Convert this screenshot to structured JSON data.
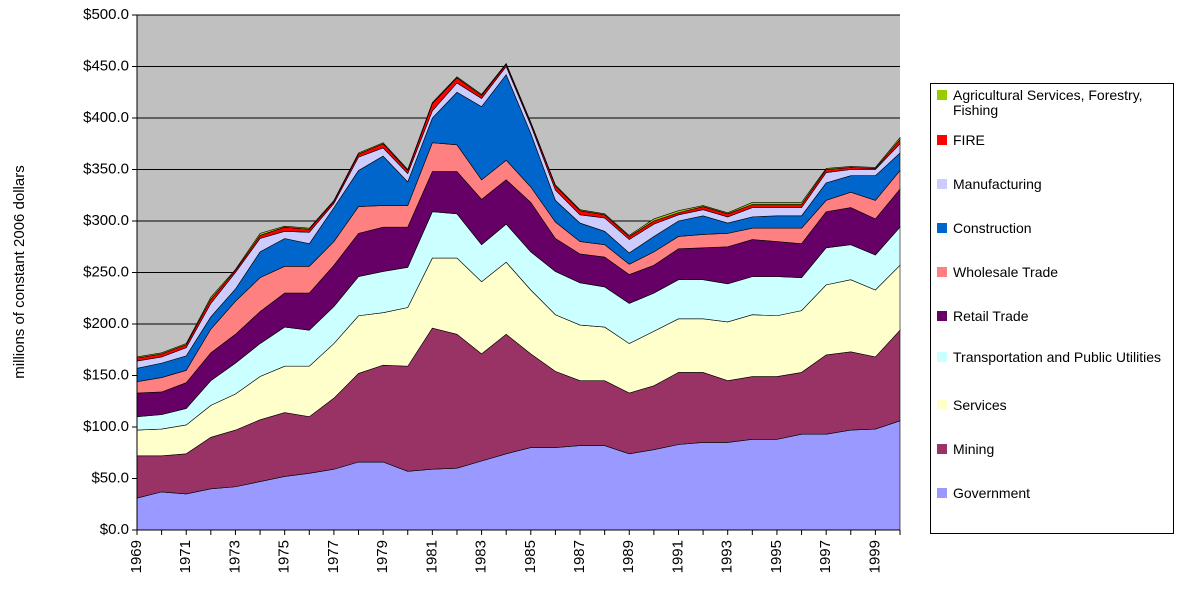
{
  "chart_data": {
    "type": "stacked_area",
    "y_label": "millions of constant 2006 dollars",
    "categories": [
      "1969",
      null,
      "1971",
      null,
      "1973",
      null,
      "1975",
      null,
      "1977",
      null,
      "1979",
      null,
      "1981",
      null,
      "1983",
      null,
      "1985",
      null,
      "1987",
      null,
      "1989",
      null,
      "1991",
      null,
      "1993",
      null,
      "1995",
      null,
      "1997",
      null,
      "1999",
      null
    ],
    "ylim": [
      0,
      500
    ],
    "yticks": [
      {
        "value": 0,
        "label": "$0.0"
      },
      {
        "value": 50,
        "label": "$50.0"
      },
      {
        "value": 100,
        "label": "$100.0"
      },
      {
        "value": 150,
        "label": "$150.0"
      },
      {
        "value": 200,
        "label": "$200.0"
      },
      {
        "value": 250,
        "label": "$250.0"
      },
      {
        "value": 300,
        "label": "$300.0"
      },
      {
        "value": 350,
        "label": "$350.0"
      },
      {
        "value": 400,
        "label": "$400.0"
      },
      {
        "value": 450,
        "label": "$450.0"
      },
      {
        "value": 500,
        "label": "$500.0"
      }
    ],
    "grid": true,
    "legend": "right",
    "series": [
      {
        "name": "Government",
        "color": "#9999ff",
        "values": [
          31,
          37,
          35,
          40,
          42,
          47,
          52,
          55,
          59,
          66,
          66,
          57,
          59,
          60,
          67,
          74,
          80,
          80,
          82,
          82,
          74,
          78,
          83,
          85,
          85,
          88,
          88,
          93,
          93,
          97,
          98,
          106
        ]
      },
      {
        "name": "Mining",
        "color": "#993366",
        "values": [
          41,
          35,
          39,
          50,
          55,
          60,
          62,
          55,
          69,
          86,
          94,
          102,
          137,
          130,
          104,
          116,
          91,
          74,
          63,
          63,
          59,
          62,
          70,
          68,
          60,
          61,
          61,
          60,
          77,
          76,
          70,
          88
        ]
      },
      {
        "name": "Services",
        "color": "#ffffcc",
        "values": [
          25,
          26,
          28,
          31,
          35,
          42,
          45,
          49,
          53,
          56,
          51,
          57,
          68,
          74,
          70,
          70,
          62,
          55,
          54,
          52,
          48,
          53,
          52,
          52,
          57,
          60,
          59,
          60,
          68,
          70,
          65,
          63
        ]
      },
      {
        "name": "Transportation and Public Utilities",
        "color": "#ccffff",
        "values": [
          13,
          14,
          16,
          24,
          30,
          32,
          38,
          35,
          36,
          38,
          40,
          39,
          45,
          43,
          36,
          37,
          37,
          42,
          41,
          39,
          39,
          37,
          38,
          38,
          37,
          37,
          38,
          32,
          36,
          34,
          34,
          37
        ]
      },
      {
        "name": "Retail Trade",
        "color": "#660066",
        "values": [
          23,
          22,
          25,
          27,
          28,
          31,
          33,
          36,
          40,
          42,
          43,
          39,
          39,
          41,
          44,
          43,
          48,
          32,
          28,
          29,
          28,
          27,
          30,
          31,
          36,
          36,
          34,
          33,
          35,
          36,
          35,
          37
        ]
      },
      {
        "name": "Wholesale Trade",
        "color": "#ff8080",
        "values": [
          11,
          14,
          12,
          23,
          32,
          33,
          26,
          26,
          23,
          26,
          21,
          21,
          28,
          26,
          19,
          19,
          15,
          16,
          12,
          12,
          10,
          13,
          12,
          13,
          13,
          11,
          13,
          15,
          11,
          15,
          18,
          18
        ]
      },
      {
        "name": "Construction",
        "color": "#0066cc",
        "values": [
          13,
          14,
          14,
          12,
          12,
          25,
          27,
          22,
          33,
          35,
          48,
          23,
          24,
          51,
          71,
          83,
          52,
          21,
          18,
          13,
          11,
          15,
          15,
          18,
          10,
          11,
          12,
          12,
          17,
          16,
          24,
          17
        ]
      },
      {
        "name": "Manufacturing",
        "color": "#ccccff",
        "values": [
          7,
          6,
          8,
          13,
          16,
          13,
          7,
          11,
          4,
          13,
          8,
          8,
          7,
          9,
          8,
          8,
          8,
          10,
          8,
          13,
          13,
          12,
          6,
          6,
          6,
          9,
          8,
          8,
          10,
          6,
          6,
          9
        ]
      },
      {
        "name": "FIRE",
        "color": "#ff0000",
        "values": [
          3,
          3,
          3,
          4,
          2,
          3,
          4,
          3,
          2,
          3,
          4,
          3,
          7,
          5,
          3,
          2,
          2,
          4,
          4,
          3,
          3,
          3,
          2,
          3,
          3,
          3,
          3,
          3,
          3,
          2,
          1,
          4
        ]
      },
      {
        "name": "Agricultural Services, Forestry, Fishing",
        "color": "#99cc00",
        "values": [
          1,
          1,
          1,
          2,
          1,
          2,
          1,
          1,
          1,
          1,
          1,
          1,
          1,
          1,
          1,
          1,
          1,
          1,
          1,
          1,
          1,
          2,
          2,
          1,
          1,
          2,
          2,
          2,
          1,
          1,
          1,
          2
        ]
      }
    ]
  }
}
